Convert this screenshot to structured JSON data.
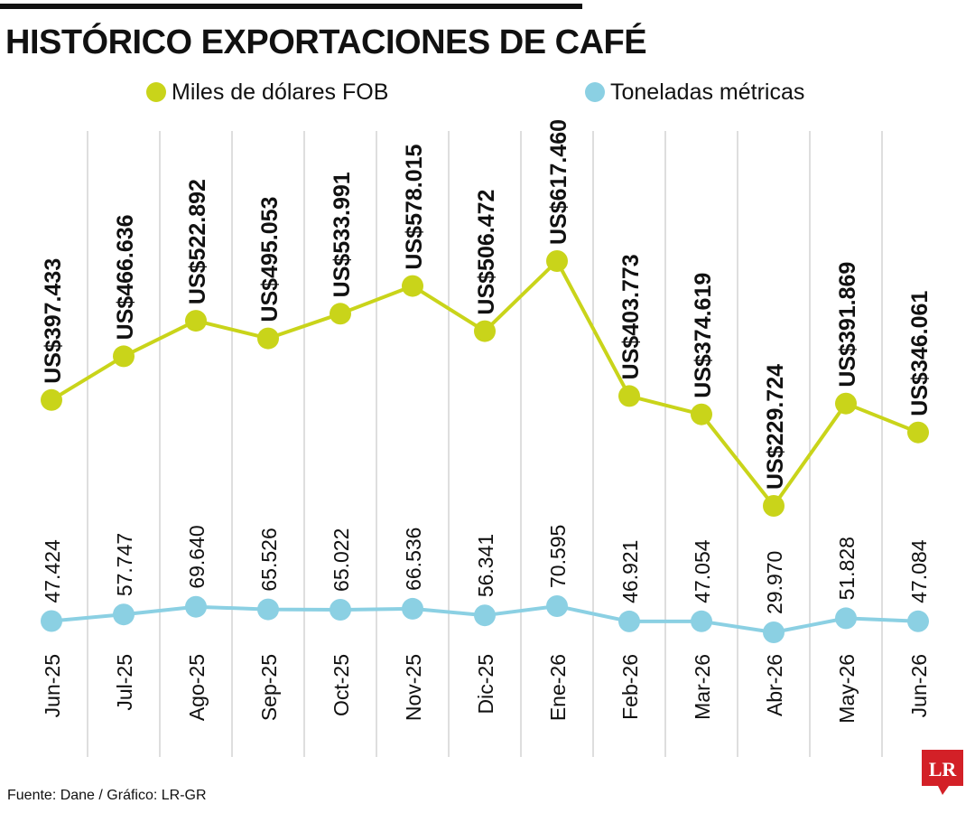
{
  "title": "HISTÓRICO EXPORTACIONES DE CAFÉ",
  "source": "Fuente: Dane / Gráfico: LR-GR",
  "logo_text": "LR",
  "colors": {
    "fob": "#c9d41a",
    "ton": "#8bd0e3",
    "grid": "#bdbdbd",
    "logo": "#d32027"
  },
  "chart_data": {
    "type": "line",
    "categories": [
      "Jun-25",
      "Jul-25",
      "Ago-25",
      "Sep-25",
      "Oct-25",
      "Nov-25",
      "Dic-25",
      "Ene-26",
      "Feb-26",
      "Mar-26",
      "Abr-26",
      "May-26",
      "Jun-26"
    ],
    "legend_position": "top",
    "grid": "vertical",
    "series": [
      {
        "name": "Miles de dólares FOB",
        "values": [
          397433,
          466636,
          522892,
          495053,
          533991,
          578015,
          506472,
          617460,
          403773,
          374619,
          229724,
          391869,
          346061
        ],
        "labels": [
          "US$397.433",
          "US$466.636",
          "US$522.892",
          "US$495.053",
          "US$533.991",
          "US$578.015",
          "US$506.472",
          "US$617.460",
          "US$403.773",
          "US$374.619",
          "US$229.724",
          "US$391.869",
          "US$346.061"
        ]
      },
      {
        "name": "Toneladas métricas",
        "values": [
          47424,
          57747,
          69640,
          65526,
          65022,
          66536,
          56341,
          70595,
          46921,
          47054,
          29970,
          51828,
          47084
        ],
        "labels": [
          "47.424",
          "57.747",
          "69.640",
          "65.526",
          "65.022",
          "66.536",
          "56.341",
          "70.595",
          "46.921",
          "47.054",
          "29.970",
          "51.828",
          "47.084"
        ]
      }
    ]
  }
}
